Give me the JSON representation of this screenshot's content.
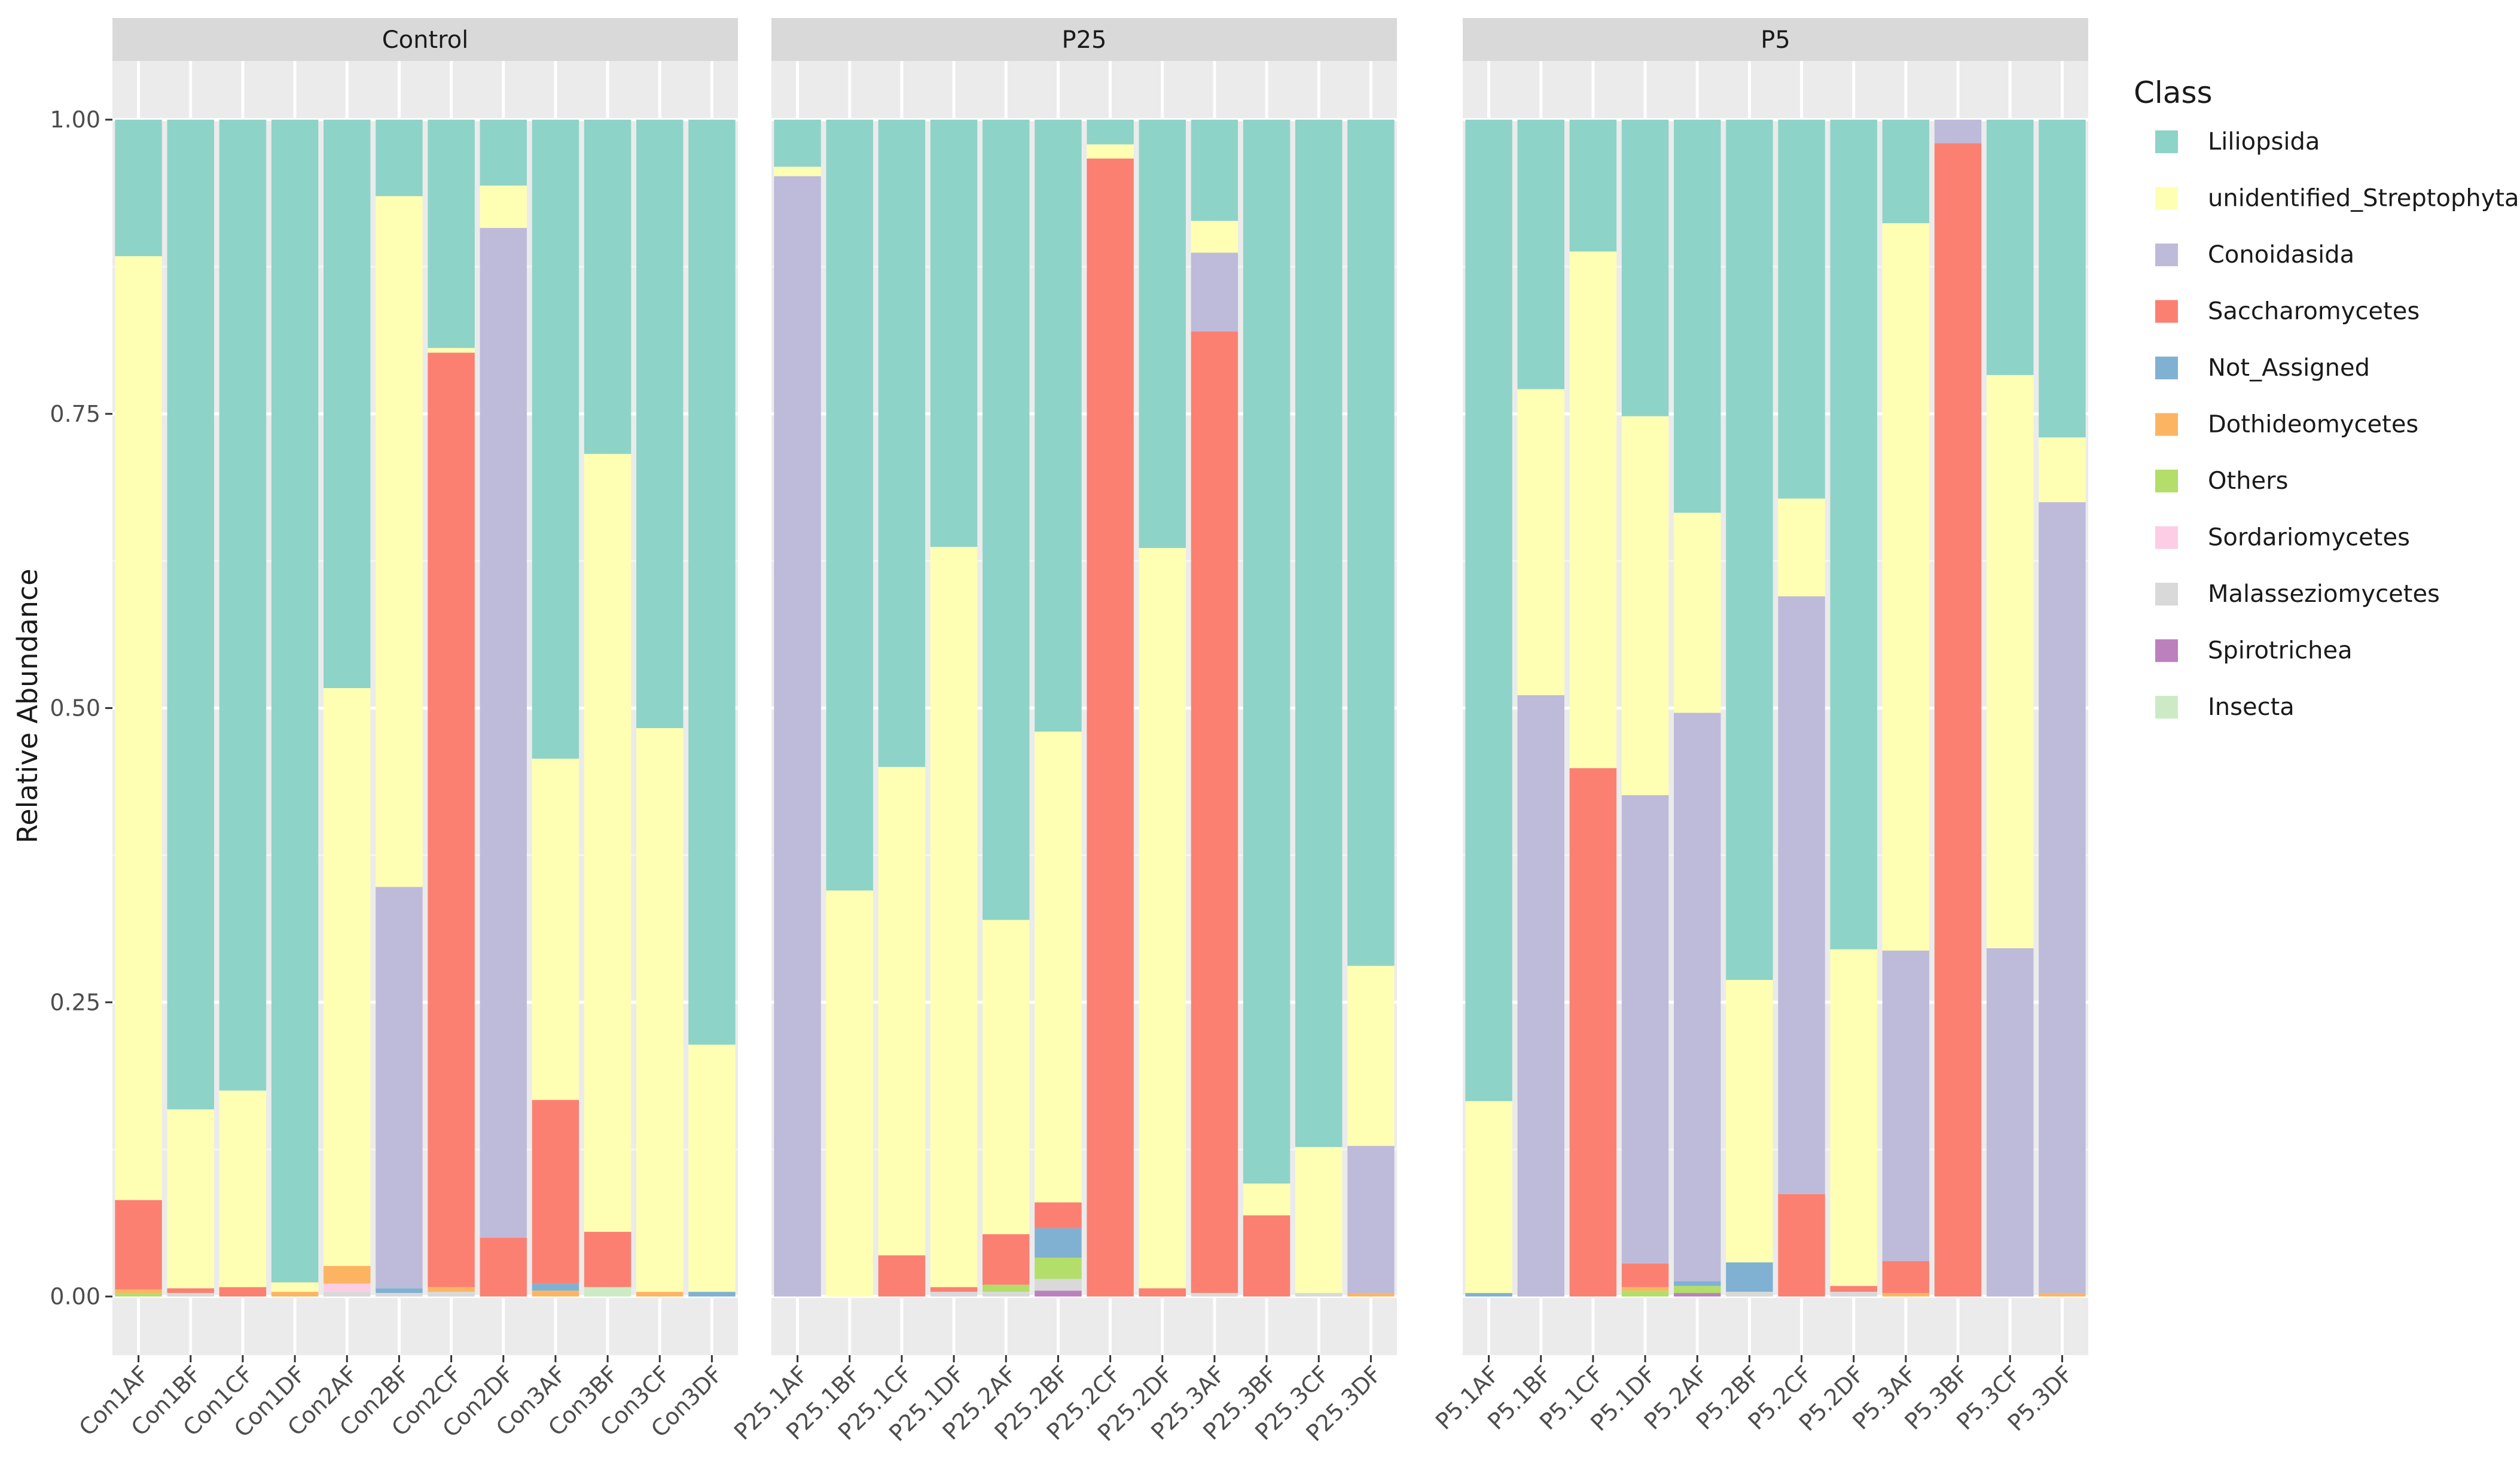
{
  "chart_data": {
    "type": "bar",
    "stacked": true,
    "ylabel": "Relative Abundance",
    "ylim": [
      0,
      1.05
    ],
    "yticks": [
      "0.00",
      "0.25",
      "0.50",
      "0.75",
      "1.00"
    ],
    "legend": {
      "title": "Class",
      "placement": "right",
      "entries": [
        "Liliopsida",
        "unidentified_Streptophyta",
        "Conoidasida",
        "Saccharomycetes",
        "Not_Assigned",
        "Dothideomycetes",
        "Others",
        "Sordariomycetes",
        "Malasseziomycetes",
        "Spirotrichea",
        "Insecta"
      ]
    },
    "colors": {
      "Liliopsida": "#8ED3C7",
      "unidentified_Streptophyta": "#FFFFB3",
      "Conoidasida": "#BEBADA",
      "Saccharomycetes": "#FB8072",
      "Not_Assigned": "#80B1D3",
      "Dothideomycetes": "#FDB462",
      "Others": "#B3DE69",
      "Sordariomycetes": "#FCCDE5",
      "Malasseziomycetes": "#D9D9D9",
      "Spirotrichea": "#BC80BD",
      "Insecta": "#CCEBC5"
    },
    "panels": [
      {
        "label": "Control",
        "samples": [
          {
            "name": "Con1AF",
            "values": {
              "Others": 0.003,
              "Dothideomycetes": 0.003,
              "Saccharomycetes": 0.076,
              "unidentified_Streptophyta": 0.802,
              "Liliopsida": 0.116
            }
          },
          {
            "name": "Con1BF",
            "values": {
              "Malasseziomycetes": 0.003,
              "Saccharomycetes": 0.004,
              "unidentified_Streptophyta": 0.152,
              "Liliopsida": 0.841
            }
          },
          {
            "name": "Con1CF",
            "values": {
              "Saccharomycetes": 0.008,
              "unidentified_Streptophyta": 0.167,
              "Liliopsida": 0.825
            }
          },
          {
            "name": "Con1DF",
            "values": {
              "Dothideomycetes": 0.004,
              "unidentified_Streptophyta": 0.008,
              "Liliopsida": 0.988
            }
          },
          {
            "name": "Con2AF",
            "values": {
              "Sordariomycetes": 0.007,
              "Malasseziomycetes": 0.004,
              "Dothideomycetes": 0.015,
              "unidentified_Streptophyta": 0.491,
              "Liliopsida": 0.483
            }
          },
          {
            "name": "Con2BF",
            "values": {
              "Malasseziomycetes": 0.003,
              "Not_Assigned": 0.004,
              "Conoidasida": 0.341,
              "unidentified_Streptophyta": 0.587,
              "Liliopsida": 0.065
            }
          },
          {
            "name": "Con2CF",
            "values": {
              "Malasseziomycetes": 0.004,
              "Dothideomycetes": 0.004,
              "Saccharomycetes": 0.794,
              "unidentified_Streptophyta": 0.004,
              "Liliopsida": 0.194
            }
          },
          {
            "name": "Con2DF",
            "values": {
              "Saccharomycetes": 0.05,
              "Conoidasida": 0.858,
              "unidentified_Streptophyta": 0.036,
              "Liliopsida": 0.056
            }
          },
          {
            "name": "Con3AF",
            "values": {
              "Dothideomycetes": 0.005,
              "Not_Assigned": 0.006,
              "Saccharomycetes": 0.156,
              "unidentified_Streptophyta": 0.29,
              "Liliopsida": 0.543
            }
          },
          {
            "name": "Con3BF",
            "values": {
              "Insecta": 0.008,
              "Saccharomycetes": 0.047,
              "unidentified_Streptophyta": 0.661,
              "Liliopsida": 0.284
            }
          },
          {
            "name": "Con3CF",
            "values": {
              "Dothideomycetes": 0.004,
              "unidentified_Streptophyta": 0.479,
              "Liliopsida": 0.517
            }
          },
          {
            "name": "Con3DF",
            "values": {
              "Not_Assigned": 0.004,
              "unidentified_Streptophyta": 0.21,
              "Liliopsida": 0.786
            }
          }
        ]
      },
      {
        "label": "P25",
        "samples": [
          {
            "name": "P25.1AF",
            "values": {
              "Conoidasida": 0.952,
              "unidentified_Streptophyta": 0.008,
              "Liliopsida": 0.04
            }
          },
          {
            "name": "P25.1BF",
            "values": {
              "unidentified_Streptophyta": 0.345,
              "Liliopsida": 0.655
            }
          },
          {
            "name": "P25.1CF",
            "values": {
              "Saccharomycetes": 0.035,
              "unidentified_Streptophyta": 0.415,
              "Liliopsida": 0.55
            }
          },
          {
            "name": "P25.1DF",
            "values": {
              "Malasseziomycetes": 0.004,
              "Saccharomycetes": 0.004,
              "unidentified_Streptophyta": 0.629,
              "Liliopsida": 0.363
            }
          },
          {
            "name": "P25.2AF",
            "values": {
              "Malasseziomycetes": 0.004,
              "Others": 0.006,
              "Saccharomycetes": 0.043,
              "unidentified_Streptophyta": 0.267,
              "Liliopsida": 0.68
            }
          },
          {
            "name": "P25.2BF",
            "values": {
              "Spirotrichea": 0.005,
              "Malasseziomycetes": 0.01,
              "Others": 0.018,
              "Not_Assigned": 0.025,
              "Saccharomycetes": 0.022,
              "unidentified_Streptophyta": 0.4,
              "Liliopsida": 0.52
            }
          },
          {
            "name": "P25.2CF",
            "values": {
              "Saccharomycetes": 0.967,
              "unidentified_Streptophyta": 0.012,
              "Liliopsida": 0.021
            }
          },
          {
            "name": "P25.2DF",
            "values": {
              "Saccharomycetes": 0.007,
              "unidentified_Streptophyta": 0.629,
              "Liliopsida": 0.364
            }
          },
          {
            "name": "P25.3AF",
            "values": {
              "Malasseziomycetes": 0.003,
              "Saccharomycetes": 0.817,
              "Conoidasida": 0.067,
              "unidentified_Streptophyta": 0.027,
              "Liliopsida": 0.086
            }
          },
          {
            "name": "P25.3BF",
            "values": {
              "Saccharomycetes": 0.069,
              "unidentified_Streptophyta": 0.027,
              "Liliopsida": 0.904
            }
          },
          {
            "name": "P25.3CF",
            "values": {
              "Malasseziomycetes": 0.003,
              "unidentified_Streptophyta": 0.124,
              "Liliopsida": 0.873
            }
          },
          {
            "name": "P25.3DF",
            "values": {
              "Dothideomycetes": 0.003,
              "Conoidasida": 0.125,
              "unidentified_Streptophyta": 0.153,
              "Liliopsida": 0.719
            }
          }
        ]
      },
      {
        "label": "P5",
        "samples": [
          {
            "name": "P5.1AF",
            "values": {
              "Not_Assigned": 0.003,
              "unidentified_Streptophyta": 0.163,
              "Liliopsida": 0.834
            }
          },
          {
            "name": "P5.1BF",
            "values": {
              "Conoidasida": 0.511,
              "unidentified_Streptophyta": 0.26,
              "Liliopsida": 0.229
            }
          },
          {
            "name": "P5.1CF",
            "values": {
              "Saccharomycetes": 0.449,
              "unidentified_Streptophyta": 0.439,
              "Liliopsida": 0.112
            }
          },
          {
            "name": "P5.1DF",
            "values": {
              "Dothideomycetes": 0.003,
              "Others": 0.005,
              "Saccharomycetes": 0.02,
              "Conoidasida": 0.398,
              "unidentified_Streptophyta": 0.322,
              "Liliopsida": 0.252
            }
          },
          {
            "name": "P5.2AF",
            "values": {
              "Spirotrichea": 0.003,
              "Others": 0.006,
              "Not_Assigned": 0.004,
              "Conoidasida": 0.483,
              "unidentified_Streptophyta": 0.17,
              "Liliopsida": 0.334
            }
          },
          {
            "name": "P5.2BF",
            "values": {
              "Malasseziomycetes": 0.004,
              "Not_Assigned": 0.025,
              "unidentified_Streptophyta": 0.24,
              "Liliopsida": 0.731
            }
          },
          {
            "name": "P5.2CF",
            "values": {
              "Saccharomycetes": 0.087,
              "Conoidasida": 0.508,
              "unidentified_Streptophyta": 0.083,
              "Liliopsida": 0.322
            }
          },
          {
            "name": "P5.2DF",
            "values": {
              "Malasseziomycetes": 0.004,
              "Saccharomycetes": 0.005,
              "unidentified_Streptophyta": 0.286,
              "Liliopsida": 0.705
            }
          },
          {
            "name": "P5.3AF",
            "values": {
              "Dothideomycetes": 0.003,
              "Saccharomycetes": 0.027,
              "Conoidasida": 0.264,
              "unidentified_Streptophyta": 0.618,
              "Liliopsida": 0.088
            }
          },
          {
            "name": "P5.3BF",
            "values": {
              "Saccharomycetes": 0.98,
              "Conoidasida": 0.02
            }
          },
          {
            "name": "P5.3CF",
            "values": {
              "Conoidasida": 0.296,
              "unidentified_Streptophyta": 0.487,
              "Liliopsida": 0.217
            }
          },
          {
            "name": "P5.3DF",
            "values": {
              "Dothideomycetes": 0.003,
              "Conoidasida": 0.672,
              "unidentified_Streptophyta": 0.055,
              "Liliopsida": 0.27
            }
          }
        ]
      }
    ]
  }
}
